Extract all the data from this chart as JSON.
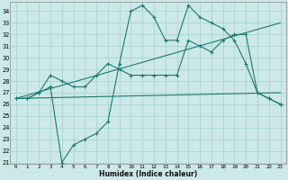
{
  "xlabel": "Humidex (Indice chaleur)",
  "background_color": "#cce8e8",
  "grid_color": "#aad4d4",
  "line_color": "#1a7a6e",
  "xlim": [
    -0.5,
    23.5
  ],
  "ylim_min": 21,
  "ylim_max": 34.5,
  "yticks": [
    21,
    22,
    23,
    24,
    25,
    26,
    27,
    28,
    29,
    30,
    31,
    32,
    33,
    34
  ],
  "xticks": [
    0,
    1,
    2,
    3,
    4,
    5,
    6,
    7,
    8,
    9,
    10,
    11,
    12,
    13,
    14,
    15,
    16,
    17,
    18,
    19,
    20,
    21,
    22,
    23
  ],
  "series1_x": [
    0,
    1,
    2,
    3,
    4,
    5,
    6,
    7,
    8,
    9,
    10,
    11,
    12,
    13,
    14,
    15,
    16,
    17,
    18,
    19,
    20,
    21,
    22,
    23
  ],
  "series1_y": [
    26.5,
    26.5,
    27.0,
    27.5,
    21.0,
    22.5,
    23.0,
    23.5,
    24.5,
    29.5,
    34.0,
    34.5,
    33.5,
    31.5,
    31.5,
    34.5,
    33.5,
    33.0,
    32.5,
    31.5,
    29.5,
    27.0,
    26.5,
    26.0
  ],
  "series2_x": [
    0,
    1,
    2,
    3,
    4,
    5,
    6,
    7,
    8,
    9,
    10,
    11,
    12,
    13,
    14,
    15,
    16,
    17,
    18,
    19,
    20,
    21,
    22,
    23
  ],
  "series2_y": [
    26.5,
    26.5,
    27.0,
    28.5,
    28.0,
    27.5,
    27.5,
    28.5,
    29.5,
    29.0,
    28.5,
    28.5,
    28.5,
    28.5,
    28.5,
    31.5,
    31.0,
    30.5,
    31.5,
    32.0,
    32.0,
    27.0,
    26.5,
    26.0
  ],
  "trend1_x": [
    0,
    23
  ],
  "trend1_y": [
    26.5,
    27.0
  ],
  "trend2_x": [
    0,
    23
  ],
  "trend2_y": [
    26.5,
    33.0
  ]
}
